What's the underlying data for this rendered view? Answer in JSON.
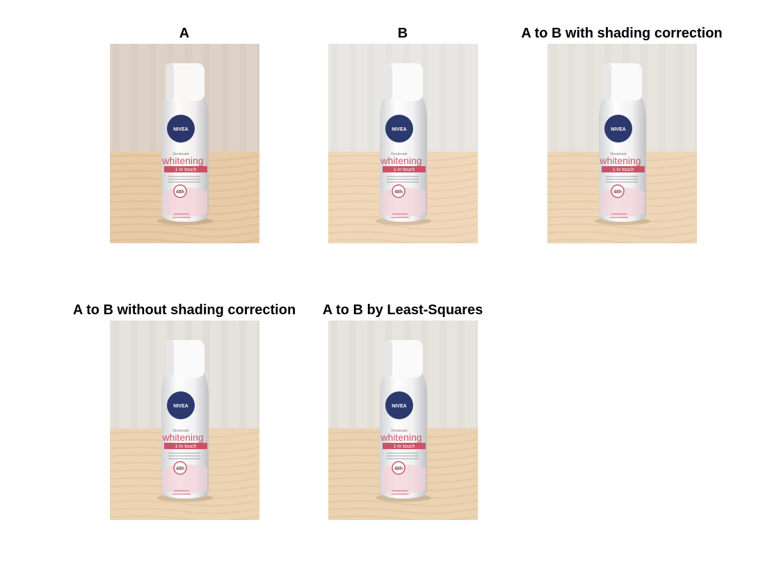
{
  "figure": {
    "panels": [
      {
        "title": "A",
        "tone": {
          "wall": "#ddd2c8",
          "wallShade": "#cfc2b5",
          "table": "#e7c9a3",
          "tableGrain": "#d8b68d",
          "tint": "#f0dfd0"
        },
        "label": {
          "brand": "NIVEA",
          "line1": "Deodorant",
          "product": "whitening",
          "band": "1-in touch",
          "badge": "48h"
        }
      },
      {
        "title": "B",
        "tone": {
          "wall": "#e9e7e3",
          "wallShade": "#dcd9d4",
          "table": "#efd5b3",
          "tableGrain": "#e2c39c",
          "tint": "#f6f4f2"
        },
        "label": {
          "brand": "NIVEA",
          "line1": "Deodorant",
          "product": "whitening",
          "band": "1-in touch",
          "badge": "48h"
        }
      },
      {
        "title": "A to B with shading correction",
        "tone": {
          "wall": "#e7e3dd",
          "wallShade": "#d9d4cd",
          "table": "#edd3b0",
          "tableGrain": "#dfc199",
          "tint": "#f4f1ee"
        },
        "label": {
          "brand": "NIVEA",
          "line1": "Deodorant",
          "product": "whitening",
          "band": "1-in touch",
          "badge": "48h"
        }
      },
      {
        "title": "A to B without shading correction",
        "tone": {
          "wall": "#e5e1db",
          "wallShade": "#d7d2cb",
          "table": "#ecd1ad",
          "tableGrain": "#ddbf97",
          "tint": "#f3f0ed"
        },
        "label": {
          "brand": "NIVEA",
          "line1": "Deodorant",
          "product": "whitening",
          "band": "1-in touch",
          "badge": "48h"
        }
      },
      {
        "title": "A to B by Least-Squares",
        "tone": {
          "wall": "#e6e2dc",
          "wallShade": "#d8d3cc",
          "table": "#ebd0ac",
          "tableGrain": "#dcbd95",
          "tint": "#f3f0ec"
        },
        "label": {
          "brand": "NIVEA",
          "line1": "Deodorant",
          "product": "whitening",
          "band": "1-in touch",
          "badge": "48h"
        }
      }
    ]
  }
}
